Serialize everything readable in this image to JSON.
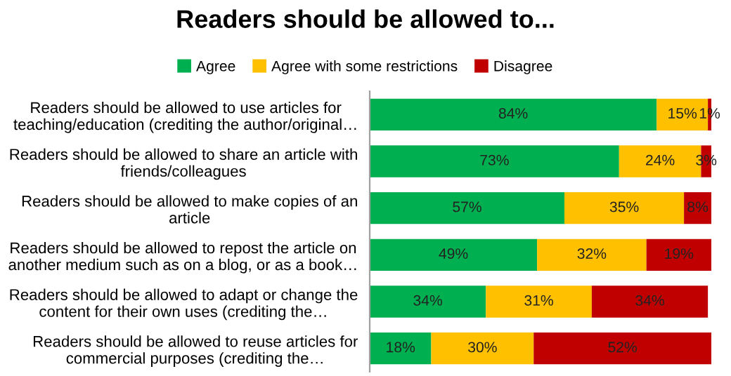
{
  "chart_data": {
    "type": "bar",
    "orientation": "horizontal",
    "stacked": true,
    "title": "Readers should be allowed to...",
    "categories": [
      "Readers should be allowed to use articles for\nteaching/education (crediting the author/original…",
      "Readers should be allowed to share an article with\nfriends/colleagues",
      "Readers should be allowed to make copies of an\narticle",
      "Readers should be allowed to repost the article on\nanother medium such as on a blog, or as a book…",
      "Readers should be allowed to adapt or change the\ncontent for their own uses (crediting the…",
      "Readers should be allowed to reuse articles for\ncommercial purposes (crediting the…"
    ],
    "series": [
      {
        "name": "Agree",
        "color": "#00b050",
        "values": [
          84,
          73,
          57,
          49,
          34,
          18
        ],
        "value_labels": [
          "84%",
          "73%",
          "57%",
          "49%",
          "34%",
          "18%"
        ]
      },
      {
        "name": "Agree with some restrictions",
        "color": "#ffc000",
        "values": [
          15,
          24,
          35,
          32,
          31,
          30
        ],
        "value_labels": [
          "15%",
          "24%",
          "35%",
          "32%",
          "31%",
          "30%"
        ]
      },
      {
        "name": "Disagree",
        "color": "#c00000",
        "values": [
          1,
          3,
          8,
          19,
          34,
          52
        ],
        "value_labels": [
          "1%",
          "3%",
          "8%",
          "19%",
          "34%",
          "52%"
        ]
      }
    ],
    "legend": "top",
    "grid": false
  }
}
